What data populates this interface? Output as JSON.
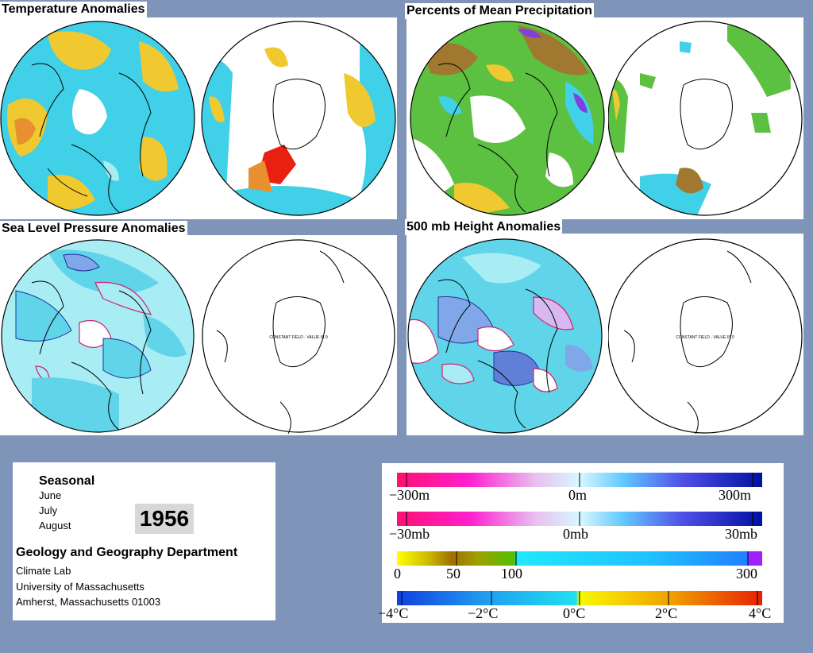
{
  "titles": {
    "temperature": "Temperature Anomalies",
    "precipitation": "Percents of Mean Precipitation",
    "slp": "Sea Level Pressure Anomalies",
    "height": "500 mb Height Anomalies"
  },
  "constant_field_label": "CONSTANT FIELD - VALUE IS 0",
  "info": {
    "period": "Seasonal",
    "months": [
      "June",
      "July",
      "August"
    ],
    "year": "1956",
    "department": "Geology and Geography Department",
    "lab": "Climate Lab",
    "university": "University of Massachusetts",
    "address": "Amherst, Massachusetts 01003"
  },
  "legends": {
    "height": [
      "−300m",
      "0m",
      "300m"
    ],
    "pressure": [
      "−30mb",
      "0mb",
      "30mb"
    ],
    "precip": [
      "0",
      "50",
      "100",
      "300"
    ],
    "temp": [
      "−4°C",
      "−2°C",
      "0°C",
      "2°C",
      "4°C"
    ]
  },
  "colors": {
    "background": "#7e94b9",
    "anomaly_cyan": "#40d0e8",
    "light_cyan": "#a8ecf4",
    "warm_yellow": "#f0c830",
    "warm_orange": "#e89030",
    "hot_red": "#e82010",
    "precip_green": "#5cc040",
    "precip_brown": "#a07830",
    "precip_purple": "#8040e0",
    "positive_contour": "#d02070",
    "negative_contour": "#2030a0"
  }
}
